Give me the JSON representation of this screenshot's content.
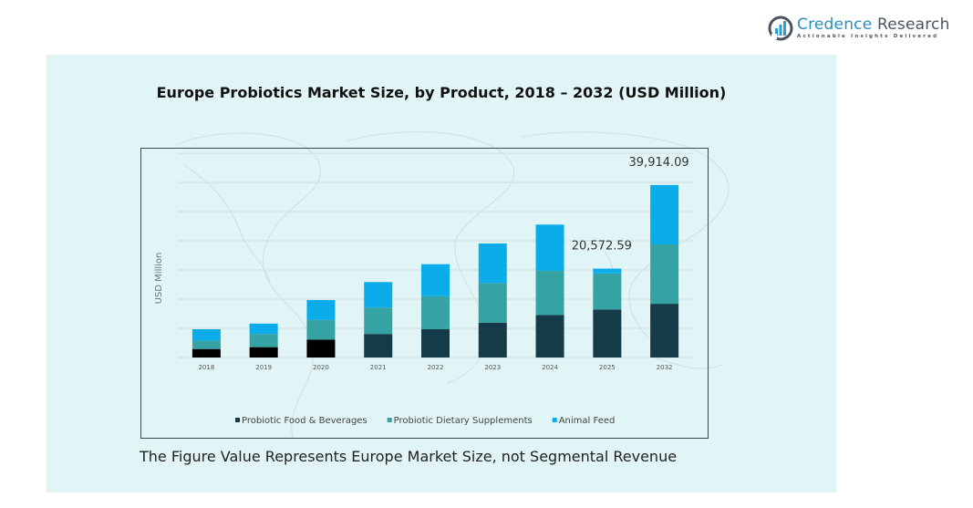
{
  "brand": {
    "name_part1": "Credence",
    "name_part2": " Research",
    "tagline": "Actionable Insights Delivered"
  },
  "caption": "The Figure Value Represents Europe Market Size, not Segmental Revenue",
  "colors": {
    "food_beverages": "#163b48",
    "food_beverages_early": "#000000",
    "dietary_supplements": "#35a3a3",
    "animal_feed": "#0aacea",
    "panel_bg": "#e2f5f6",
    "gridline": "#d3dcdd"
  },
  "chart_data": {
    "type": "bar",
    "stacked": true,
    "title": "Europe Probiotics Market Size, by Product, 2018 – 2032 (USD Million)",
    "xlabel": "",
    "ylabel": "USD Million",
    "categories": [
      "2018",
      "2019",
      "2020",
      "2021",
      "2022",
      "2023",
      "2024",
      "2025",
      "2032"
    ],
    "series": [
      {
        "name": "Probiotic Food & Beverages",
        "values": [
          1960,
          2400,
          4140,
          5450,
          6540,
          8070,
          9810,
          11120,
          12430
        ]
      },
      {
        "name": "Probiotic Dietary Supplements",
        "values": [
          1960,
          3050,
          4580,
          6110,
          7630,
          9160,
          10250,
          8330,
          13740
        ]
      },
      {
        "name": "Animal Feed",
        "values": [
          2620,
          2400,
          4580,
          5890,
          7420,
          9160,
          10690,
          1120,
          13744.09
        ]
      }
    ],
    "totals": [
      6540,
      7850,
      13300,
      17450,
      21590,
      26390,
      30750,
      20572.59,
      39914.09
    ],
    "data_labels": [
      {
        "category": "2025",
        "text": "20,572.59"
      },
      {
        "category": "2032",
        "text": "39,914.09"
      }
    ],
    "ylim": [
      0,
      46000
    ],
    "gridline_step": 6750,
    "gridlines": 7,
    "grid": true,
    "y_tick_labels_shown": false,
    "legend_position": "bottom"
  }
}
